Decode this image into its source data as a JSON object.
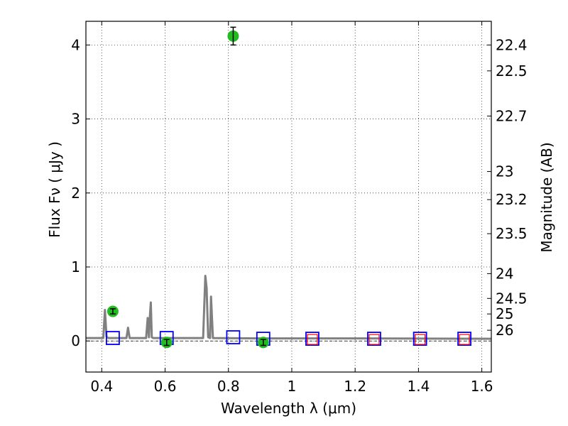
{
  "chart_data": {
    "type": "scatter",
    "xlabel": "Wavelength  λ (μm)",
    "ylabel": "Flux  Fν  ( μJy )",
    "y2label": "Magnitude (AB)",
    "xlim": [
      0.35,
      1.63
    ],
    "ylim": [
      -0.42,
      4.32
    ],
    "grid": true,
    "x_ticks": [
      0.4,
      0.6,
      0.8,
      1.0,
      1.2,
      1.4,
      1.6
    ],
    "x_tick_labels": [
      "0.4",
      "0.6",
      "0.8",
      "1",
      "1.2",
      "1.4",
      "1.6"
    ],
    "y_ticks": [
      0,
      1,
      2,
      3,
      4
    ],
    "y_tick_labels": [
      "0",
      "1",
      "2",
      "3",
      "4"
    ],
    "mag_ticks": [
      {
        "label": "22.4",
        "flux": 4.0
      },
      {
        "label": "22.5",
        "flux": 3.65
      },
      {
        "label": "22.7",
        "flux": 3.04
      },
      {
        "label": "23",
        "flux": 2.29
      },
      {
        "label": "23.2",
        "flux": 1.91
      },
      {
        "label": "23.5",
        "flux": 1.45
      },
      {
        "label": "24",
        "flux": 0.91
      },
      {
        "label": "24.5",
        "flux": 0.575
      },
      {
        "label": "25",
        "flux": 0.365
      },
      {
        "label": "26",
        "flux": 0.145
      }
    ],
    "model_spectrum": {
      "color": "#808080",
      "points": [
        [
          0.35,
          0.04
        ],
        [
          0.405,
          0.04
        ],
        [
          0.41,
          0.42
        ],
        [
          0.415,
          0.06
        ],
        [
          0.42,
          0.04
        ],
        [
          0.478,
          0.04
        ],
        [
          0.483,
          0.18
        ],
        [
          0.488,
          0.04
        ],
        [
          0.54,
          0.04
        ],
        [
          0.545,
          0.31
        ],
        [
          0.549,
          0.05
        ],
        [
          0.552,
          0.33
        ],
        [
          0.555,
          0.52
        ],
        [
          0.558,
          0.05
        ],
        [
          0.562,
          0.04
        ],
        [
          0.72,
          0.04
        ],
        [
          0.727,
          0.88
        ],
        [
          0.731,
          0.72
        ],
        [
          0.736,
          0.05
        ],
        [
          0.742,
          0.04
        ],
        [
          0.745,
          0.6
        ],
        [
          0.751,
          0.04
        ],
        [
          0.9,
          0.035
        ],
        [
          1.2,
          0.035
        ],
        [
          1.63,
          0.03
        ]
      ]
    },
    "reference_line_y": 0,
    "measured_fluxes": {
      "color": "#22bb22",
      "points": [
        {
          "x": 0.435,
          "y": 0.4,
          "err": 0.035
        },
        {
          "x": 0.605,
          "y": -0.02,
          "err": 0.04
        },
        {
          "x": 0.815,
          "y": 4.12,
          "err": 0.12
        },
        {
          "x": 0.91,
          "y": -0.02,
          "err": 0.04
        }
      ]
    },
    "model_bandpass_fluxes": {
      "color": "#0000ff",
      "points": [
        {
          "x": 0.435,
          "y": 0.04
        },
        {
          "x": 0.605,
          "y": 0.04
        },
        {
          "x": 0.815,
          "y": 0.05
        },
        {
          "x": 0.91,
          "y": 0.03
        },
        {
          "x": 1.065,
          "y": 0.03
        },
        {
          "x": 1.26,
          "y": 0.03
        },
        {
          "x": 1.405,
          "y": 0.03
        },
        {
          "x": 1.545,
          "y": 0.03
        }
      ]
    },
    "upper_limit_markers": {
      "color": "#ff0000",
      "points": [
        {
          "x": 1.065,
          "y": 0.02
        },
        {
          "x": 1.26,
          "y": 0.02
        },
        {
          "x": 1.405,
          "y": 0.02
        },
        {
          "x": 1.545,
          "y": 0.02
        }
      ]
    }
  }
}
